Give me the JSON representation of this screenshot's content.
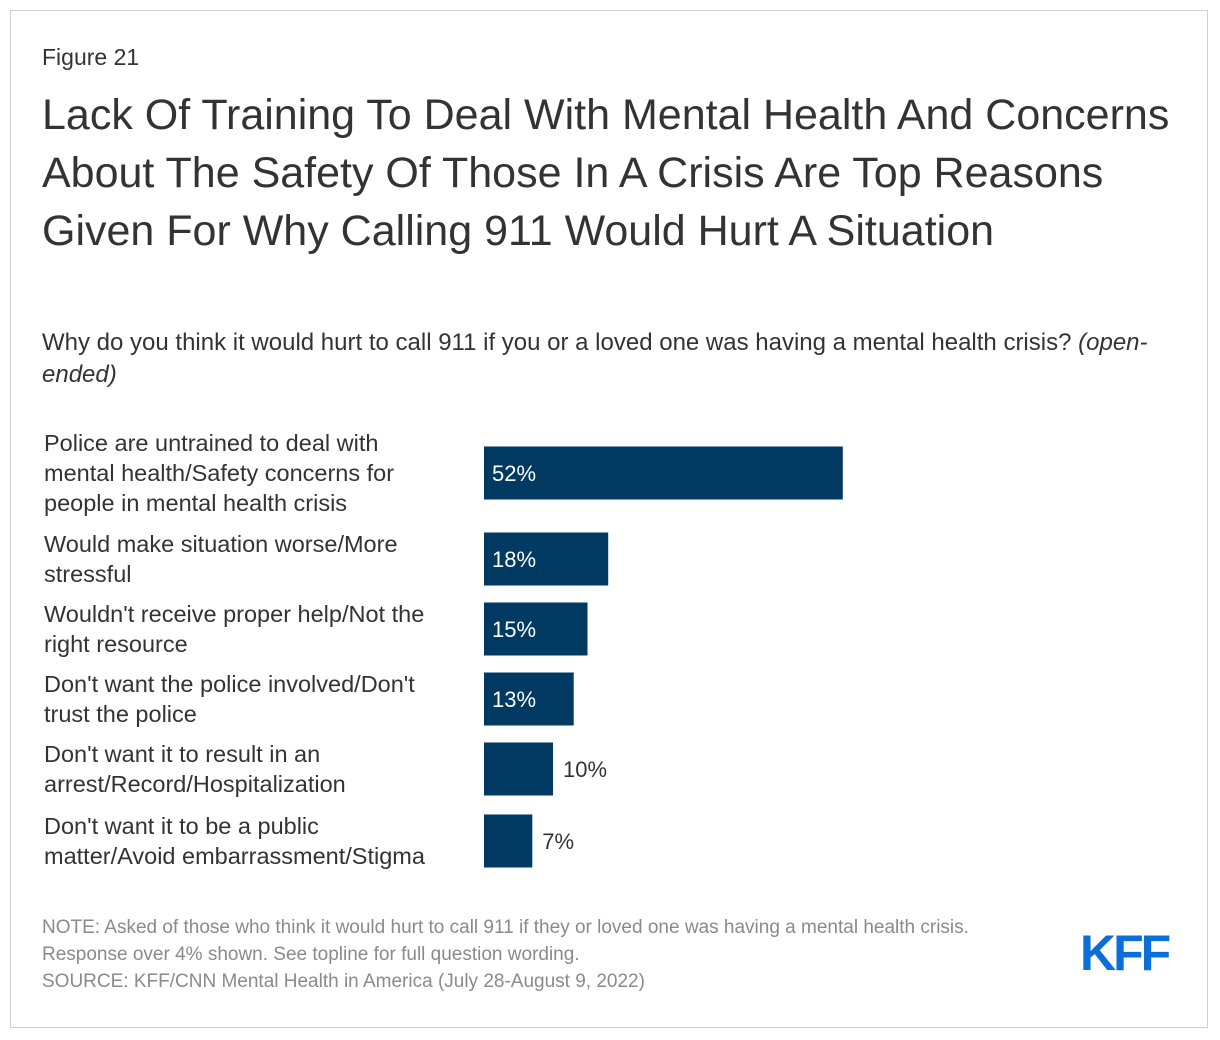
{
  "figure_label": "Figure 21",
  "title": "Lack Of Training To Deal With Mental Health And Concerns About The Safety Of Those In A Crisis Are Top Reasons Given For Why Calling 911 Would Hurt A Situation",
  "subtitle": "Why do you think it would hurt to call 911 if you or a loved one was having a mental health crisis?",
  "subtitle_note": "(open-ended)",
  "note": "NOTE: Asked of those who think it would hurt to call 911 if they or loved one was having a mental health crisis. Response over 4% shown. See topline for full question wording.",
  "source": "SOURCE: KFF/CNN Mental Health in America (July 28-August 9, 2022)",
  "logo_text": "KFF",
  "colors": {
    "bar": "#003a63",
    "logo": "#0a6fd8",
    "label_inside": "#ffffff",
    "label_outside": "#333333"
  },
  "chart_data": {
    "type": "bar",
    "orientation": "horizontal",
    "title": "Why do you think it would hurt to call 911 if you or a loved one was having a mental health crisis? (open-ended)",
    "categories": [
      [
        "Police are untrained to deal with",
        "mental health/Safety concerns for",
        "people in mental health crisis"
      ],
      [
        "Would make situation worse/More",
        "stressful"
      ],
      [
        "Wouldn't receive proper help/Not the",
        "right resource"
      ],
      [
        "Don't want the police involved/Don't",
        "trust the police"
      ],
      [
        "Don't want it to result in an",
        "arrest/Record/Hospitalization"
      ],
      [
        "Don't want it to be a public",
        "matter/Avoid embarrassment/Stigma"
      ]
    ],
    "values": [
      52,
      18,
      15,
      13,
      10,
      7
    ],
    "value_labels": [
      "52%",
      "18%",
      "15%",
      "13%",
      "10%",
      "7%"
    ],
    "xlim": [
      0,
      100
    ],
    "xlabel": "",
    "ylabel": "",
    "grid": false
  }
}
